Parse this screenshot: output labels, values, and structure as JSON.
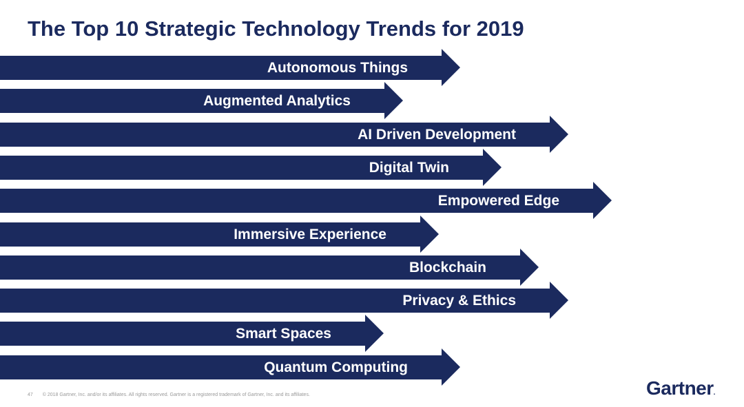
{
  "slide": {
    "title": "The Top 10 Strategic Technology Trends for 2019",
    "accent_color": "#1b2a5e",
    "trends": [
      {
        "label": "Autonomous Things",
        "tip": 668
      },
      {
        "label": "Augmented Analytics",
        "tip": 585
      },
      {
        "label": "AI Driven Development",
        "tip": 825
      },
      {
        "label": "Digital Twin",
        "tip": 728
      },
      {
        "label": "Empowered Edge",
        "tip": 888
      },
      {
        "label": "Immersive Experience",
        "tip": 637
      },
      {
        "label": "Blockchain",
        "tip": 782
      },
      {
        "label": "Privacy & Ethics",
        "tip": 825
      },
      {
        "label": "Smart Spaces",
        "tip": 557
      },
      {
        "label": "Quantum Computing",
        "tip": 668
      }
    ],
    "footer": {
      "page_number": "47",
      "copyright": "© 2018 Gartner, Inc. and/or its affiliates. All rights reserved. Gartner is a registered trademark of Gartner, Inc. and its affiliates."
    },
    "logo": "Gartner"
  }
}
